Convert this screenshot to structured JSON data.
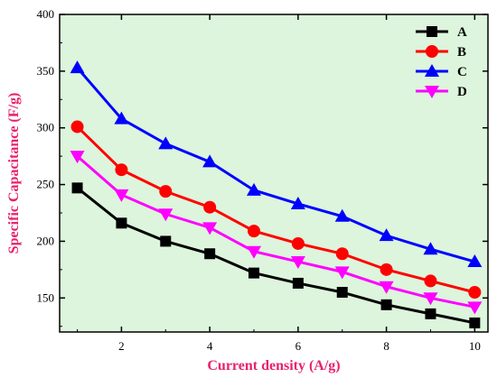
{
  "chart_data": {
    "type": "line",
    "title": "",
    "xlabel": "Current density (A/g)",
    "ylabel": "Specific Capacitance (F/g)",
    "xlim": [
      0.6,
      10.3
    ],
    "ylim": [
      120,
      400
    ],
    "x_ticks": [
      2,
      4,
      6,
      8,
      10
    ],
    "y_ticks": [
      150,
      200,
      250,
      300,
      350,
      400
    ],
    "grid": false,
    "legend_position": "top-right",
    "background_color": "#dcf5dc",
    "axis_label_color": "#e8216b",
    "x": [
      1,
      2,
      3,
      4,
      5,
      6,
      7,
      8,
      9,
      10
    ],
    "series": [
      {
        "name": "A",
        "color": "#000000",
        "marker": "square",
        "values": [
          247,
          216,
          200,
          189,
          172,
          163,
          155,
          144,
          136,
          128
        ]
      },
      {
        "name": "B",
        "color": "#ff0000",
        "marker": "circle",
        "values": [
          301,
          263,
          244,
          230,
          209,
          198,
          189,
          175,
          165,
          155
        ]
      },
      {
        "name": "C",
        "color": "#0000ff",
        "marker": "triangle-up",
        "values": [
          353,
          308,
          286,
          270,
          245,
          233,
          222,
          205,
          193,
          182
        ]
      },
      {
        "name": "D",
        "color": "#ff00ff",
        "marker": "triangle-down",
        "values": [
          275,
          241,
          224,
          212,
          191,
          182,
          173,
          160,
          150,
          142
        ]
      }
    ]
  }
}
